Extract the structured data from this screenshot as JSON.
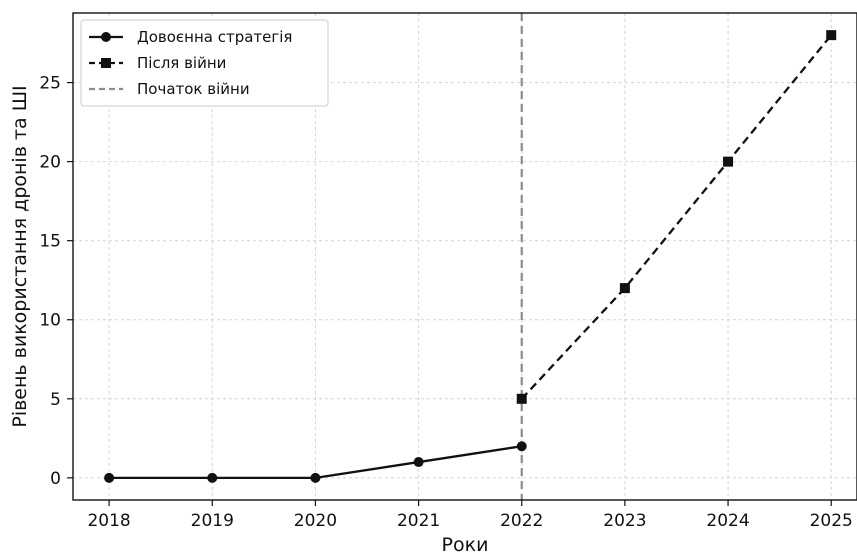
{
  "chart_data": {
    "type": "line",
    "xlabel": "Роки",
    "ylabel": "Рівень використання дронів та ШІ",
    "xlim": [
      2017.65,
      2025.25
    ],
    "ylim": [
      -1.4,
      29.4
    ],
    "x_ticks": [
      "2018",
      "2019",
      "2020",
      "2021",
      "2022",
      "2023",
      "2024",
      "2025"
    ],
    "y_ticks": [
      "0",
      "5",
      "10",
      "15",
      "20",
      "25"
    ],
    "grid": true,
    "legend_position": "top-left",
    "series": [
      {
        "name": "Довоєнна стратегія",
        "style": "solid",
        "marker": "circle",
        "color": "#111111",
        "x": [
          2018,
          2019,
          2020,
          2021,
          2022
        ],
        "y": [
          0,
          0,
          0,
          1,
          2
        ]
      },
      {
        "name": "Після війни",
        "style": "dashed",
        "marker": "square",
        "color": "#111111",
        "x": [
          2022,
          2023,
          2024,
          2025
        ],
        "y": [
          5,
          12,
          20,
          28
        ]
      }
    ],
    "vline": {
      "name": "Початок війни",
      "x": 2022,
      "style": "dashed",
      "color": "#8c8c8c"
    }
  }
}
